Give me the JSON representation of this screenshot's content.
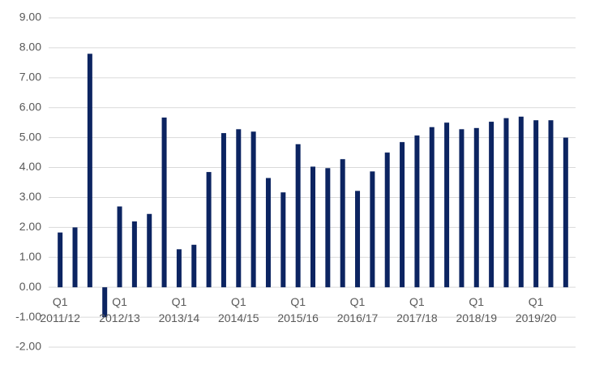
{
  "chart_data": {
    "type": "bar",
    "categories": [
      "Q1",
      null,
      null,
      null,
      "Q1",
      null,
      null,
      null,
      "Q1",
      null,
      null,
      null,
      "Q1",
      null,
      null,
      null,
      "Q1",
      null,
      null,
      null,
      "Q1",
      null,
      null,
      null,
      "Q1",
      null,
      null,
      null,
      "Q1",
      null,
      null,
      null,
      "Q1",
      null,
      null
    ],
    "category_groups": [
      "2011/12",
      "2012/13",
      "2013/14",
      "2014/15",
      "2015/16",
      "2016/17",
      "2017/18",
      "2018/19",
      "2019/20"
    ],
    "values": [
      1.83,
      2.0,
      7.8,
      -1.0,
      2.7,
      2.2,
      2.45,
      5.67,
      1.27,
      1.42,
      3.85,
      5.15,
      5.28,
      5.2,
      3.65,
      3.17,
      4.78,
      4.03,
      3.98,
      4.28,
      3.22,
      3.87,
      4.5,
      4.85,
      5.07,
      5.35,
      5.5,
      5.28,
      5.32,
      5.53,
      5.65,
      5.7,
      5.58,
      5.58,
      5.0
    ],
    "color": "#0c2461",
    "ylim": [
      -2,
      9
    ],
    "yticks": [
      {
        "value": -2,
        "label": "-2.00"
      },
      {
        "value": -1,
        "label": "-1.00"
      },
      {
        "value": 0,
        "label": "0.00"
      },
      {
        "value": 1,
        "label": "1.00"
      },
      {
        "value": 2,
        "label": "2.00"
      },
      {
        "value": 3,
        "label": "3.00"
      },
      {
        "value": 4,
        "label": "4.00"
      },
      {
        "value": 5,
        "label": "5.00"
      },
      {
        "value": 6,
        "label": "6.00"
      },
      {
        "value": 7,
        "label": "7.00"
      },
      {
        "value": 8,
        "label": "8.00"
      },
      {
        "value": 9,
        "label": "9.00"
      }
    ],
    "grid": true
  }
}
